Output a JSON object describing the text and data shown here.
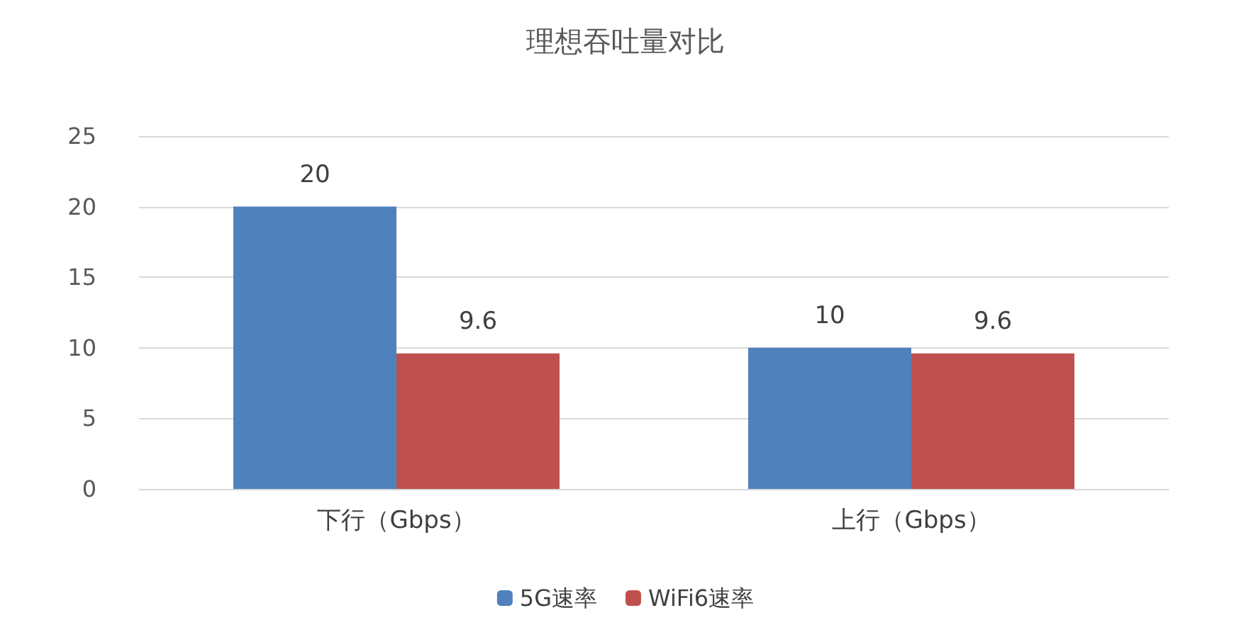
{
  "chart_data": {
    "type": "bar",
    "title": "理想吞吐量对比",
    "categories": [
      "下行（Gbps）",
      "上行（Gbps）"
    ],
    "series": [
      {
        "name": "5G速率",
        "color": "#4f81bd",
        "values": [
          20,
          10
        ]
      },
      {
        "name": "WiFi6速率",
        "color": "#c0504d",
        "values": [
          9.6,
          9.6
        ]
      }
    ],
    "ylim": [
      0,
      25
    ],
    "yticks": [
      0,
      5,
      10,
      15,
      20,
      25
    ],
    "grid": "y",
    "legend": "bottom",
    "data_labels": true
  }
}
